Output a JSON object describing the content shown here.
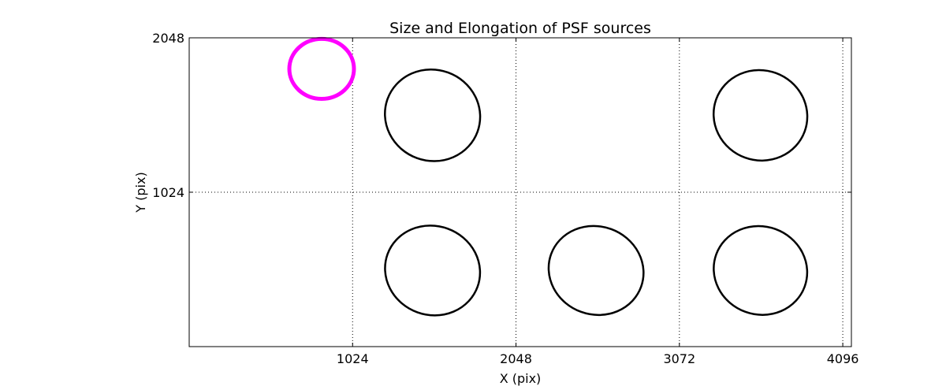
{
  "chart_data": {
    "type": "scatter",
    "title": "Size and Elongation of PSF sources",
    "xlabel": "X (pix)",
    "ylabel": "Y (pix)",
    "xlim": [
      0,
      4150
    ],
    "ylim": [
      0,
      2048
    ],
    "xticks": [
      1024,
      2048,
      3072,
      4096
    ],
    "yticks": [
      1024,
      2048
    ],
    "xtick_labels": [
      "1024",
      "2048",
      "3072",
      "4096"
    ],
    "ytick_labels": [
      "1024",
      "2048"
    ],
    "grid": true,
    "reference_marker": {
      "x": 830,
      "y": 1842,
      "color": "#ff00ff",
      "diameter_x": 405,
      "diameter_y": 398
    },
    "sources": [
      {
        "x": 1525,
        "y": 1534,
        "size_x": 600,
        "size_y": 604,
        "angle_deg": 20
      },
      {
        "x": 3580,
        "y": 1534,
        "size_x": 590,
        "size_y": 597,
        "angle_deg": 20
      },
      {
        "x": 1525,
        "y": 505,
        "size_x": 600,
        "size_y": 590,
        "angle_deg": 20
      },
      {
        "x": 2550,
        "y": 505,
        "size_x": 600,
        "size_y": 584,
        "angle_deg": 20
      },
      {
        "x": 3580,
        "y": 505,
        "size_x": 590,
        "size_y": 584,
        "angle_deg": 20
      }
    ]
  }
}
